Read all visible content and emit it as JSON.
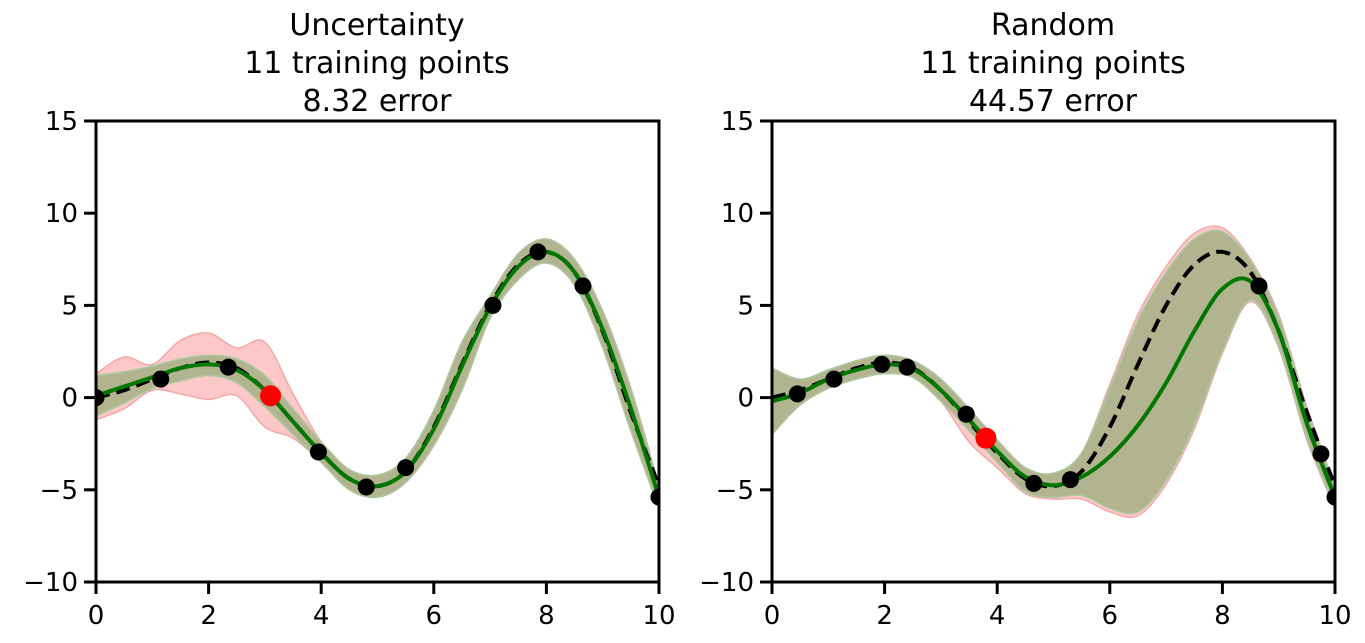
{
  "chart_data": [
    {
      "type": "line",
      "title": [
        "Uncertainty",
        "11 training points",
        "8.32 error"
      ],
      "xlim": [
        0,
        10
      ],
      "ylim": [
        -10,
        15
      ],
      "xticks": [
        "0",
        "2",
        "4",
        "6",
        "8",
        "10"
      ],
      "yticks": [
        "−10",
        "−5",
        "0",
        "5",
        "10",
        "15"
      ],
      "grid": false,
      "colors": {
        "mean_line": "#007800",
        "true_function": "#000000",
        "confidence_band_current": "#b2b48f",
        "confidence_band_previous": "#ffc8c8",
        "training_points": "#000000",
        "new_point": "#ff0000"
      },
      "true_function": {
        "x": [
          0,
          0.5,
          1,
          1.5,
          2,
          2.5,
          3,
          3.5,
          4,
          4.5,
          5,
          5.5,
          6,
          6.5,
          7,
          7.5,
          8,
          8.5,
          9,
          9.5,
          10
        ],
        "y": [
          0,
          0.4,
          1.0,
          1.6,
          1.9,
          1.6,
          0.4,
          -1.3,
          -3.0,
          -4.4,
          -4.8,
          -4.0,
          -1.6,
          1.8,
          5.0,
          7.2,
          7.9,
          6.8,
          3.6,
          -0.8,
          -4.8
        ]
      },
      "mean_line": {
        "x": [
          0,
          0.5,
          1,
          1.5,
          2,
          2.5,
          3,
          3.5,
          4,
          4.5,
          5,
          5.5,
          6,
          6.5,
          7,
          7.5,
          8,
          8.5,
          9,
          9.5,
          10
        ],
        "y": [
          0.1,
          0.6,
          1.1,
          1.6,
          1.8,
          1.5,
          0.4,
          -1.3,
          -3.0,
          -4.4,
          -4.8,
          -4.0,
          -1.7,
          1.7,
          4.9,
          7.1,
          7.9,
          6.8,
          3.7,
          -0.6,
          -5.4
        ]
      },
      "band_current": {
        "x": [
          0,
          0.5,
          1,
          1.5,
          2,
          2.5,
          3,
          3.5,
          4,
          4.5,
          5,
          5.5,
          6,
          6.5,
          7,
          7.5,
          8,
          8.5,
          9,
          9.5,
          10
        ],
        "lower": [
          -1.0,
          -0.3,
          0.5,
          0.9,
          1.2,
          0.8,
          -0.5,
          -2.0,
          -3.5,
          -5.0,
          -5.4,
          -4.6,
          -2.6,
          0.4,
          4.3,
          6.4,
          7.3,
          6.1,
          2.7,
          -1.8,
          -6.0
        ],
        "upper": [
          1.2,
          1.4,
          1.7,
          2.1,
          2.3,
          2.1,
          1.2,
          -0.6,
          -2.4,
          -3.9,
          -4.2,
          -3.3,
          -0.7,
          3.0,
          5.5,
          7.8,
          8.6,
          7.5,
          4.7,
          0.5,
          -4.8
        ]
      },
      "band_previous": {
        "x": [
          0,
          0.5,
          1,
          1.5,
          2,
          2.5,
          3,
          3.5,
          4,
          4.5,
          5,
          5.5,
          6,
          6.5,
          7,
          7.5,
          8,
          8.5,
          9,
          9.5,
          10
        ],
        "lower": [
          -1.2,
          -0.6,
          0.4,
          0.2,
          -0.1,
          0.1,
          -1.6,
          -2.2,
          -3.5,
          -5.0,
          -5.4,
          -4.6,
          -2.6,
          0.4,
          4.3,
          6.4,
          7.3,
          6.1,
          2.7,
          -1.8,
          -6.0
        ],
        "upper": [
          1.3,
          2.2,
          1.8,
          3.1,
          3.5,
          2.7,
          3.0,
          0.2,
          -2.4,
          -3.9,
          -4.2,
          -3.3,
          -0.7,
          3.0,
          5.5,
          7.8,
          8.6,
          7.5,
          4.7,
          0.5,
          -4.8
        ]
      },
      "training_points": {
        "x": [
          0,
          1.15,
          2.35,
          3.95,
          4.8,
          5.5,
          7.05,
          7.85,
          8.65,
          10
        ],
        "y": [
          0,
          1.0,
          1.65,
          -2.95,
          -4.85,
          -3.8,
          5.0,
          7.9,
          6.05,
          -5.4
        ]
      },
      "new_point": {
        "x": 3.1,
        "y": 0.1
      }
    },
    {
      "type": "line",
      "title": [
        "Random",
        "11 training points",
        "44.57 error"
      ],
      "xlim": [
        0,
        10
      ],
      "ylim": [
        -10,
        15
      ],
      "xticks": [
        "0",
        "2",
        "4",
        "6",
        "8",
        "10"
      ],
      "yticks": [
        "−10",
        "−5",
        "0",
        "5",
        "10",
        "15"
      ],
      "grid": false,
      "colors": {
        "mean_line": "#007800",
        "true_function": "#000000",
        "confidence_band_current": "#b2b48f",
        "confidence_band_previous": "#ffc8c8",
        "training_points": "#000000",
        "new_point": "#ff0000"
      },
      "true_function": {
        "x": [
          0,
          0.5,
          1,
          1.5,
          2,
          2.5,
          3,
          3.5,
          4,
          4.5,
          5,
          5.5,
          6,
          6.5,
          7,
          7.5,
          8,
          8.5,
          9,
          9.5,
          10
        ],
        "y": [
          0,
          0.4,
          1.0,
          1.6,
          1.9,
          1.6,
          0.4,
          -1.3,
          -3.0,
          -4.4,
          -4.8,
          -4.0,
          -1.6,
          1.8,
          5.0,
          7.2,
          7.9,
          6.8,
          3.6,
          -0.8,
          -4.8
        ]
      },
      "mean_line": {
        "x": [
          0,
          0.5,
          1,
          1.5,
          2,
          2.5,
          3,
          3.5,
          4,
          4.5,
          5,
          5.5,
          6,
          6.5,
          7,
          7.5,
          8,
          8.5,
          9,
          9.5,
          10
        ],
        "y": [
          -0.2,
          0.25,
          1.0,
          1.5,
          1.8,
          1.55,
          0.4,
          -1.2,
          -2.9,
          -4.3,
          -4.75,
          -4.3,
          -3.2,
          -1.5,
          0.8,
          3.6,
          5.9,
          6.3,
          3.6,
          -1.4,
          -5.4
        ]
      },
      "band_current": {
        "x": [
          0,
          0.5,
          1,
          1.5,
          2,
          2.5,
          3,
          3.5,
          4,
          4.5,
          5,
          5.5,
          6,
          6.5,
          7,
          7.5,
          8,
          8.5,
          9,
          9.5,
          10
        ],
        "lower": [
          -2.0,
          -0.4,
          0.5,
          1.0,
          1.3,
          1.1,
          -0.2,
          -1.8,
          -3.5,
          -5.1,
          -5.4,
          -5.3,
          -6.0,
          -6.2,
          -4.5,
          -1.5,
          2.5,
          5.3,
          2.8,
          -2.2,
          -5.9
        ],
        "upper": [
          1.6,
          1.0,
          1.5,
          2.0,
          2.3,
          2.0,
          1.0,
          -0.6,
          -2.3,
          -3.8,
          -4.1,
          -3.0,
          0.5,
          4.2,
          6.8,
          8.6,
          9.0,
          7.4,
          4.4,
          -0.6,
          -4.9
        ]
      },
      "band_previous": {
        "x": [
          0,
          0.5,
          1,
          1.5,
          2,
          2.5,
          3,
          3.5,
          4,
          4.5,
          5,
          5.5,
          6,
          6.5,
          7,
          7.5,
          8,
          8.5,
          9,
          9.5,
          10
        ],
        "lower": [
          -2.0,
          -0.4,
          0.5,
          1.0,
          1.3,
          1.1,
          -0.2,
          -2.4,
          -3.8,
          -5.2,
          -5.5,
          -5.5,
          -6.2,
          -6.4,
          -4.7,
          -1.7,
          2.4,
          5.2,
          2.7,
          -2.3,
          -6.0
        ],
        "upper": [
          1.6,
          1.0,
          1.5,
          2.0,
          2.3,
          2.0,
          1.0,
          -0.6,
          -2.3,
          -3.8,
          -4.1,
          -3.0,
          0.7,
          4.5,
          7.1,
          8.9,
          9.2,
          7.5,
          4.5,
          -0.5,
          -4.8
        ]
      },
      "training_points": {
        "x": [
          0.45,
          1.1,
          1.95,
          2.4,
          3.45,
          4.65,
          5.3,
          8.65,
          9.75,
          10
        ],
        "y": [
          0.2,
          1.0,
          1.8,
          1.65,
          -0.9,
          -4.65,
          -4.45,
          6.05,
          -3.05,
          -5.4
        ]
      },
      "new_point": {
        "x": 3.8,
        "y": -2.2
      }
    }
  ]
}
